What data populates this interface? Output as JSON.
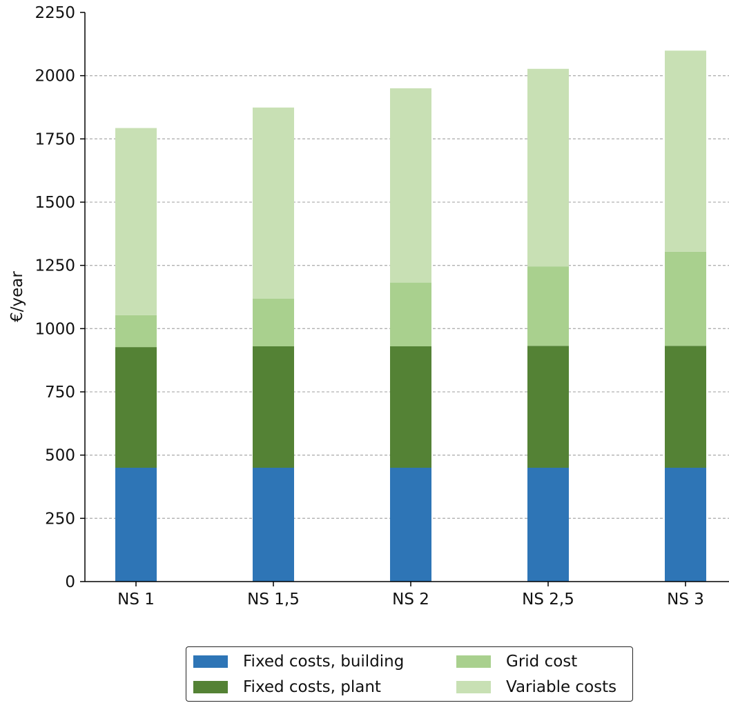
{
  "chart_data": {
    "type": "bar",
    "stacked": true,
    "categories": [
      "NS 1",
      "NS 1,5",
      "NS 2",
      "NS 2,5",
      "NS 3"
    ],
    "series": [
      {
        "name": "Fixed costs, building",
        "color": "#2e75b6",
        "values": [
          450,
          450,
          450,
          450,
          450
        ]
      },
      {
        "name": "Fixed costs, plant",
        "color": "#548235",
        "values": [
          477,
          480,
          480,
          482,
          482
        ]
      },
      {
        "name": "Grid cost",
        "color": "#a9d08e",
        "values": [
          126,
          189,
          252,
          314,
          372
        ]
      },
      {
        "name": "Variable costs",
        "color": "#c8e0b4",
        "values": [
          740,
          755,
          768,
          781,
          795
        ]
      }
    ],
    "ylabel": "€/year",
    "xlabel": "",
    "ylim": [
      0,
      2250
    ],
    "yticks": [
      "0",
      "250",
      "500",
      "750",
      "1000",
      "1250",
      "1500",
      "1750",
      "2000",
      "2250"
    ],
    "grid": "y-dashed",
    "legend_position": "bottom-center"
  }
}
